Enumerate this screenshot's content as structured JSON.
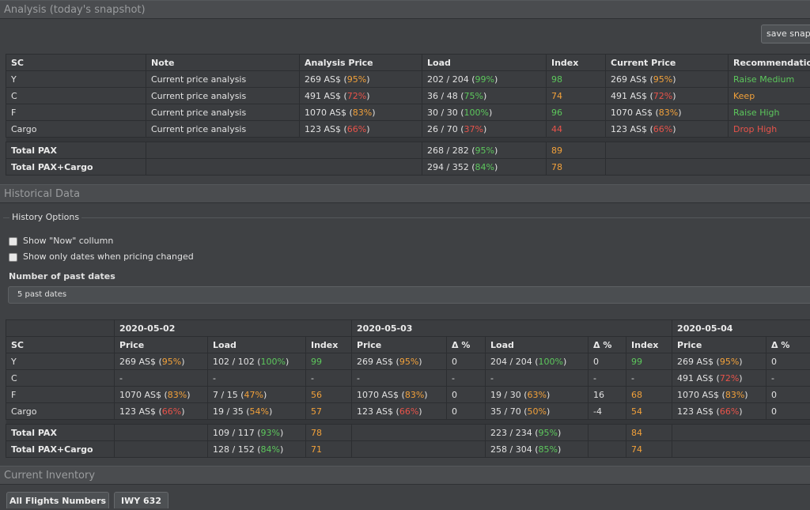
{
  "snapshot": {
    "title": "Analysis (today's snapshot)",
    "save_label": "save snapshot",
    "columns": [
      "SC",
      "Note",
      "Analysis Price",
      "Load",
      "Index",
      "Current Price",
      "Recommendation"
    ],
    "rows": [
      {
        "sc": "Y",
        "note": "Current price analysis",
        "analysis_price": "269 AS$",
        "analysis_pct": "95%",
        "load": "202 / 204",
        "load_pct": "99%",
        "index": "98",
        "current_price": "269 AS$",
        "current_pct": "95%",
        "rec": "Raise Medium"
      },
      {
        "sc": "C",
        "note": "Current price analysis",
        "analysis_price": "491 AS$",
        "analysis_pct": "72%",
        "load": "36 / 48",
        "load_pct": "75%",
        "index": "74",
        "current_price": "491 AS$",
        "current_pct": "72%",
        "rec": "Keep"
      },
      {
        "sc": "F",
        "note": "Current price analysis",
        "analysis_price": "1070 AS$",
        "analysis_pct": "83%",
        "load": "30 / 30",
        "load_pct": "100%",
        "index": "96",
        "current_price": "1070 AS$",
        "current_pct": "83%",
        "rec": "Raise High"
      },
      {
        "sc": "Cargo",
        "note": "Current price analysis",
        "analysis_price": "123 AS$",
        "analysis_pct": "66%",
        "load": "26 / 70",
        "load_pct": "37%",
        "index": "44",
        "current_price": "123 AS$",
        "current_pct": "66%",
        "rec": "Drop High"
      }
    ],
    "totals": [
      {
        "label": "Total PAX",
        "load": "268 / 282",
        "load_pct": "95%",
        "index": "89"
      },
      {
        "label": "Total PAX+Cargo",
        "load": "294 / 352",
        "load_pct": "84%",
        "index": "78"
      }
    ]
  },
  "history": {
    "title": "Historical Data",
    "options_legend": "History Options",
    "show_now_label": "Show \"Now\" collumn",
    "only_changed_label": "Show only dates when pricing changed",
    "past_dates_label": "Number of past dates",
    "past_dates_value": "5 past dates",
    "dates": [
      "2020-05-02",
      "2020-05-03",
      "2020-05-04"
    ],
    "sub_headers": {
      "sc": "SC",
      "price": "Price",
      "load": "Load",
      "index": "Index",
      "delta": "Δ %"
    },
    "rows": [
      {
        "sc": "Y",
        "d1_price": "269 AS$",
        "d1_price_pct": "95%",
        "d1_load": "102 / 102",
        "d1_load_pct": "100%",
        "d1_index": "99",
        "d2_price": "269 AS$",
        "d2_price_pct": "95%",
        "d2_delta1": "0",
        "d2_load": "204 / 204",
        "d2_load_pct": "100%",
        "d2_delta2": "0",
        "d2_index": "99",
        "d3_price": "269 AS$",
        "d3_price_pct": "95%",
        "d3_delta": "0"
      },
      {
        "sc": "C",
        "d1_price": "-",
        "d1_price_pct": "",
        "d1_load": "-",
        "d1_load_pct": "",
        "d1_index": "-",
        "d2_price": "-",
        "d2_price_pct": "",
        "d2_delta1": "-",
        "d2_load": "-",
        "d2_load_pct": "",
        "d2_delta2": "-",
        "d2_index": "-",
        "d3_price": "491 AS$",
        "d3_price_pct": "72%",
        "d3_delta": "-"
      },
      {
        "sc": "F",
        "d1_price": "1070 AS$",
        "d1_price_pct": "83%",
        "d1_load": "7 / 15",
        "d1_load_pct": "47%",
        "d1_index": "56",
        "d2_price": "1070 AS$",
        "d2_price_pct": "83%",
        "d2_delta1": "0",
        "d2_load": "19 / 30",
        "d2_load_pct": "63%",
        "d2_delta2": "16",
        "d2_index": "68",
        "d3_price": "1070 AS$",
        "d3_price_pct": "83%",
        "d3_delta": "0"
      },
      {
        "sc": "Cargo",
        "d1_price": "123 AS$",
        "d1_price_pct": "66%",
        "d1_load": "19 / 35",
        "d1_load_pct": "54%",
        "d1_index": "57",
        "d2_price": "123 AS$",
        "d2_price_pct": "66%",
        "d2_delta1": "0",
        "d2_load": "35 / 70",
        "d2_load_pct": "50%",
        "d2_delta2": "-4",
        "d2_index": "54",
        "d3_price": "123 AS$",
        "d3_price_pct": "66%",
        "d3_delta": "0"
      }
    ],
    "totals": [
      {
        "label": "Total PAX",
        "d1_load": "109 / 117",
        "d1_load_pct": "93%",
        "d1_index": "78",
        "d2_load": "223 / 234",
        "d2_load_pct": "95%",
        "d2_index": "84"
      },
      {
        "label": "Total PAX+Cargo",
        "d1_load": "128 / 152",
        "d1_load_pct": "84%",
        "d1_index": "71",
        "d2_load": "258 / 304",
        "d2_load_pct": "85%",
        "d2_index": "74"
      }
    ]
  },
  "inventory": {
    "title": "Current Inventory",
    "tabs": [
      "All Flights Numbers",
      "IWY 632"
    ]
  },
  "colors": {
    "green": "#5cc75c",
    "orange": "#f2a13a",
    "red": "#e8534a",
    "background": "#3f4144"
  }
}
